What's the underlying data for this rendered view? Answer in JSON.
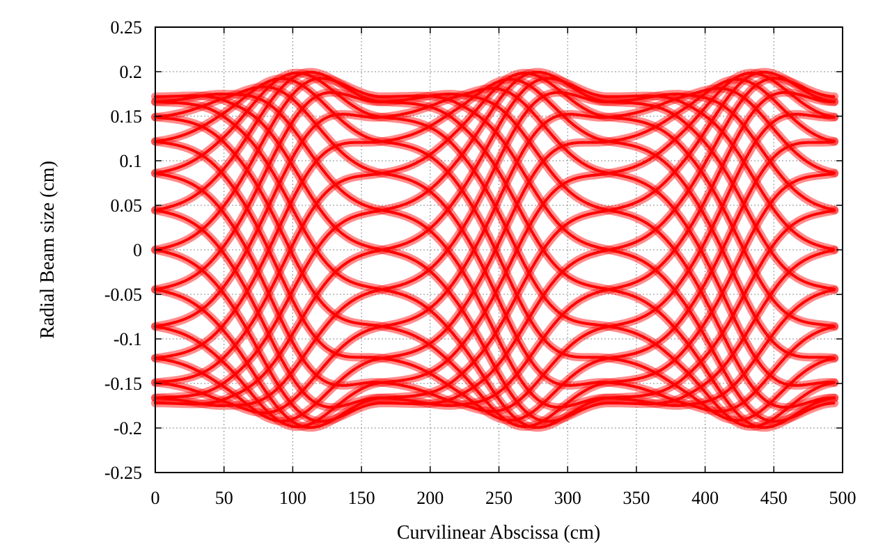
{
  "chart_data": {
    "type": "line",
    "title": "",
    "xlabel": "Curvilinear Abscissa (cm)",
    "ylabel": "Radial Beam size (cm)",
    "xlim": [
      0,
      500
    ],
    "ylim": [
      -0.25,
      0.25
    ],
    "xticks": [
      0,
      50,
      100,
      150,
      200,
      250,
      300,
      350,
      400,
      450,
      500
    ],
    "xtick_labels": [
      "0",
      "50",
      "100",
      "150",
      "200",
      "250",
      "300",
      "350",
      "400",
      "450",
      "500"
    ],
    "yticks": [
      -0.25,
      -0.2,
      -0.15,
      -0.1,
      -0.05,
      0,
      0.05,
      0.1,
      0.15,
      0.2,
      0.25
    ],
    "ytick_labels": [
      "-0.25",
      "-0.2",
      "-0.15",
      "-0.1",
      "-0.05",
      "0",
      "0.05",
      "0.1",
      "0.15",
      "0.2",
      "0.25"
    ],
    "grid": true,
    "legend": "none",
    "series_color": "#ff0000",
    "marker": "plus",
    "envelope": {
      "x": [
        0,
        50,
        110,
        165,
        220,
        275,
        330,
        385,
        440,
        495
      ],
      "y": [
        0.172,
        0.175,
        0.2,
        0.172,
        0.175,
        0.2,
        0.172,
        0.175,
        0.2,
        0.172
      ]
    },
    "series": [
      {
        "amplitude": 0.172,
        "phase_deg": 0
      },
      {
        "amplitude": 0.172,
        "phase_deg": 15
      },
      {
        "amplitude": 0.172,
        "phase_deg": 30
      },
      {
        "amplitude": 0.172,
        "phase_deg": 45
      },
      {
        "amplitude": 0.172,
        "phase_deg": 60
      },
      {
        "amplitude": 0.172,
        "phase_deg": 75
      },
      {
        "amplitude": 0.172,
        "phase_deg": 90
      },
      {
        "amplitude": 0.172,
        "phase_deg": 105
      },
      {
        "amplitude": 0.172,
        "phase_deg": 120
      },
      {
        "amplitude": 0.172,
        "phase_deg": 135
      },
      {
        "amplitude": 0.172,
        "phase_deg": 150
      },
      {
        "amplitude": 0.172,
        "phase_deg": 165
      },
      {
        "amplitude": 0.172,
        "phase_deg": 180
      },
      {
        "amplitude": 0.172,
        "phase_deg": 195
      },
      {
        "amplitude": 0.172,
        "phase_deg": 210
      },
      {
        "amplitude": 0.172,
        "phase_deg": 225
      },
      {
        "amplitude": 0.172,
        "phase_deg": 240
      },
      {
        "amplitude": 0.172,
        "phase_deg": 255
      },
      {
        "amplitude": 0.172,
        "phase_deg": 270
      },
      {
        "amplitude": 0.172,
        "phase_deg": 285
      },
      {
        "amplitude": 0.172,
        "phase_deg": 300
      },
      {
        "amplitude": 0.172,
        "phase_deg": 315
      },
      {
        "amplitude": 0.172,
        "phase_deg": 330
      },
      {
        "amplitude": 0.172,
        "phase_deg": 345
      }
    ]
  }
}
